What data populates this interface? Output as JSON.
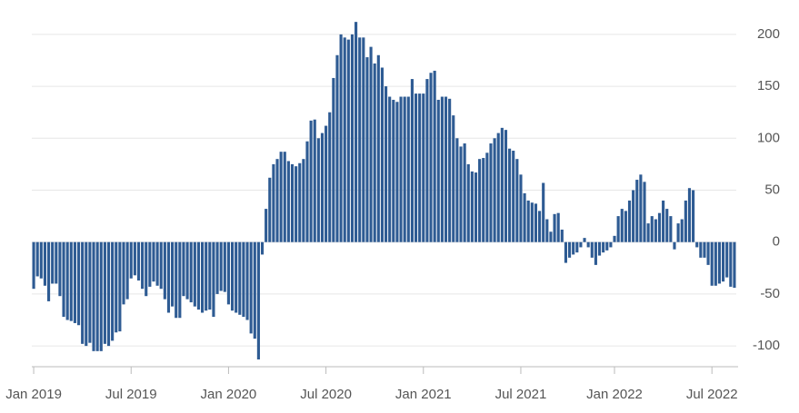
{
  "chart_data": {
    "type": "bar",
    "color": "#2e5b93",
    "grid": true,
    "ylim": [
      -120,
      220
    ],
    "yticks": [
      -100,
      -50,
      0,
      50,
      100,
      150,
      200
    ],
    "categories": [
      "Jan 2019",
      null,
      null,
      null,
      null,
      null,
      null,
      null,
      null,
      null,
      null,
      null,
      null,
      null,
      null,
      null,
      null,
      null,
      null,
      null,
      null,
      null,
      null,
      null,
      null,
      null,
      "Jul 2019",
      null,
      null,
      null,
      null,
      null,
      null,
      null,
      null,
      null,
      null,
      null,
      null,
      null,
      null,
      null,
      null,
      null,
      null,
      null,
      null,
      null,
      null,
      null,
      null,
      null,
      "Jan 2020",
      null,
      null,
      null,
      null,
      null,
      null,
      null,
      null,
      null,
      null,
      null,
      null,
      null,
      null,
      null,
      null,
      null,
      null,
      null,
      null,
      null,
      null,
      null,
      null,
      null,
      "Jul 2020",
      null,
      null,
      null,
      null,
      null,
      null,
      null,
      null,
      null,
      null,
      null,
      null,
      null,
      null,
      null,
      null,
      null,
      null,
      null,
      null,
      null,
      null,
      null,
      null,
      null,
      "Jan 2021",
      null,
      null,
      null,
      null,
      null,
      null,
      null,
      null,
      null,
      null,
      null,
      null,
      null,
      null,
      null,
      null,
      null,
      null,
      null,
      null,
      null,
      null,
      null,
      null,
      null,
      "Jul 2021",
      null,
      null,
      null,
      null,
      null,
      null,
      null,
      null,
      null,
      null,
      null,
      null,
      null,
      null,
      null,
      null,
      null,
      null,
      null,
      null,
      null,
      null,
      null,
      null,
      "Jan 2022",
      null,
      null,
      null,
      null,
      null,
      null,
      null,
      null,
      null,
      null,
      null,
      null,
      null,
      null,
      null,
      null,
      null,
      null,
      null,
      null,
      null,
      null,
      null,
      null,
      null,
      "Jul 2022",
      null,
      null,
      null,
      null,
      null,
      null
    ],
    "values": [
      -45,
      -33,
      -35,
      -42,
      -57,
      -40,
      -40,
      -52,
      -72,
      -75,
      -76,
      -78,
      -80,
      -98,
      -100,
      -97,
      -105,
      -105,
      -105,
      -98,
      -100,
      -95,
      -87,
      -86,
      -60,
      -55,
      -35,
      -32,
      -37,
      -45,
      -52,
      -43,
      -38,
      -42,
      -45,
      -55,
      -68,
      -62,
      -73,
      -73,
      -52,
      -55,
      -58,
      -62,
      -65,
      -68,
      -66,
      -65,
      -72,
      -50,
      -47,
      -48,
      -60,
      -66,
      -68,
      -70,
      -72,
      -75,
      -88,
      -93,
      -113,
      -12,
      32,
      62,
      75,
      80,
      87,
      87,
      78,
      75,
      73,
      76,
      80,
      97,
      117,
      118,
      100,
      105,
      112,
      125,
      158,
      180,
      200,
      197,
      195,
      200,
      212,
      197,
      197,
      178,
      188,
      172,
      180,
      168,
      150,
      140,
      137,
      135,
      140,
      140,
      140,
      157,
      143,
      143,
      143,
      157,
      163,
      165,
      137,
      140,
      140,
      138,
      122,
      100,
      92,
      95,
      75,
      68,
      67,
      80,
      81,
      86,
      95,
      100,
      105,
      110,
      108,
      90,
      88,
      80,
      65,
      47,
      40,
      38,
      37,
      30,
      57,
      22,
      10,
      27,
      28,
      12,
      -20,
      -15,
      -12,
      -10,
      -5,
      4,
      -5,
      -15,
      -22,
      -13,
      -10,
      -8,
      -5,
      6,
      25,
      32,
      30,
      40,
      50,
      60,
      65,
      58,
      18,
      25,
      22,
      28,
      40,
      32,
      25,
      -7,
      18,
      22,
      40,
      52,
      50,
      -5,
      -15,
      -15,
      -22,
      -42,
      -42,
      -40,
      -38,
      -34,
      -43,
      -44
    ]
  }
}
